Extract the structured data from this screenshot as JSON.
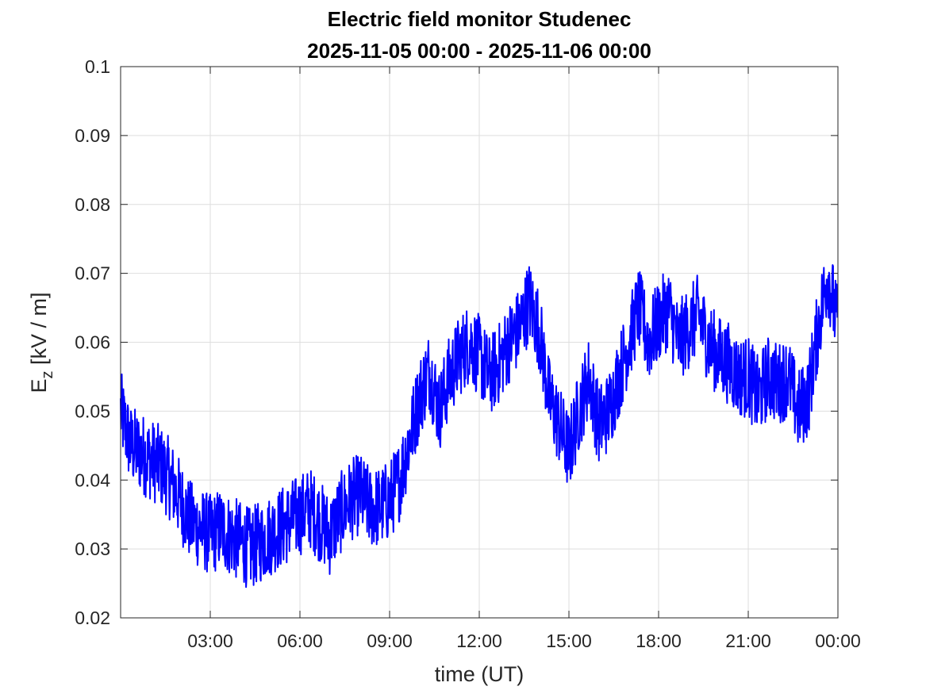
{
  "chart_data": {
    "type": "line",
    "title": "Electric field monitor Studenec",
    "subtitle": "2025-11-05 00:00 - 2025-11-06 00:00",
    "xlabel": "time (UT)",
    "ylabel": {
      "base": "E",
      "subscript": "z",
      "unit": " [kV / m]"
    },
    "xlim": [
      "2025-11-05 00:00",
      "2025-11-06 00:00"
    ],
    "ylim": [
      0.02,
      0.1
    ],
    "x_ticks": [
      "03:00",
      "06:00",
      "09:00",
      "12:00",
      "15:00",
      "18:00",
      "21:00",
      "00:00"
    ],
    "y_ticks": [
      "0.02",
      "0.03",
      "0.04",
      "0.05",
      "0.06",
      "0.07",
      "0.08",
      "0.09",
      "0.1"
    ],
    "grid": true,
    "line_color": "#0000ff",
    "series": [
      {
        "x": [
          "00:00",
          "00:20",
          "00:40",
          "01:00",
          "01:20",
          "01:40",
          "02:00",
          "02:20",
          "02:40",
          "03:00",
          "03:20",
          "03:40",
          "04:00",
          "04:20",
          "04:40",
          "05:00",
          "05:20",
          "05:40",
          "06:00",
          "06:20",
          "06:40",
          "07:00",
          "07:20",
          "07:40",
          "08:00",
          "08:20",
          "08:40",
          "09:00",
          "09:20",
          "09:40",
          "10:00",
          "10:20",
          "10:40",
          "11:00",
          "11:20",
          "11:40",
          "12:00",
          "12:20",
          "12:40",
          "13:00",
          "13:20",
          "13:40",
          "14:00",
          "14:20",
          "14:40",
          "15:00",
          "15:20",
          "15:40",
          "16:00",
          "16:20",
          "16:40",
          "17:00",
          "17:20",
          "17:40",
          "18:00",
          "18:20",
          "18:40",
          "19:00",
          "19:20",
          "19:40",
          "20:00",
          "20:20",
          "20:40",
          "21:00",
          "21:20",
          "21:40",
          "22:00",
          "22:20",
          "22:40",
          "23:00",
          "23:20",
          "23:40",
          "23:59"
        ],
        "values": [
          0.05,
          0.045,
          0.044,
          0.043,
          0.042,
          0.04,
          0.037,
          0.034,
          0.033,
          0.032,
          0.033,
          0.032,
          0.031,
          0.03,
          0.031,
          0.032,
          0.033,
          0.034,
          0.035,
          0.036,
          0.034,
          0.032,
          0.035,
          0.037,
          0.038,
          0.036,
          0.036,
          0.037,
          0.04,
          0.046,
          0.052,
          0.056,
          0.05,
          0.055,
          0.058,
          0.06,
          0.058,
          0.055,
          0.057,
          0.06,
          0.062,
          0.066,
          0.062,
          0.052,
          0.048,
          0.044,
          0.05,
          0.055,
          0.048,
          0.05,
          0.055,
          0.06,
          0.065,
          0.06,
          0.063,
          0.065,
          0.06,
          0.062,
          0.064,
          0.06,
          0.058,
          0.057,
          0.055,
          0.055,
          0.052,
          0.055,
          0.054,
          0.055,
          0.05,
          0.052,
          0.062,
          0.07,
          0.062
        ],
        "noise_amplitude": 0.006
      }
    ]
  }
}
